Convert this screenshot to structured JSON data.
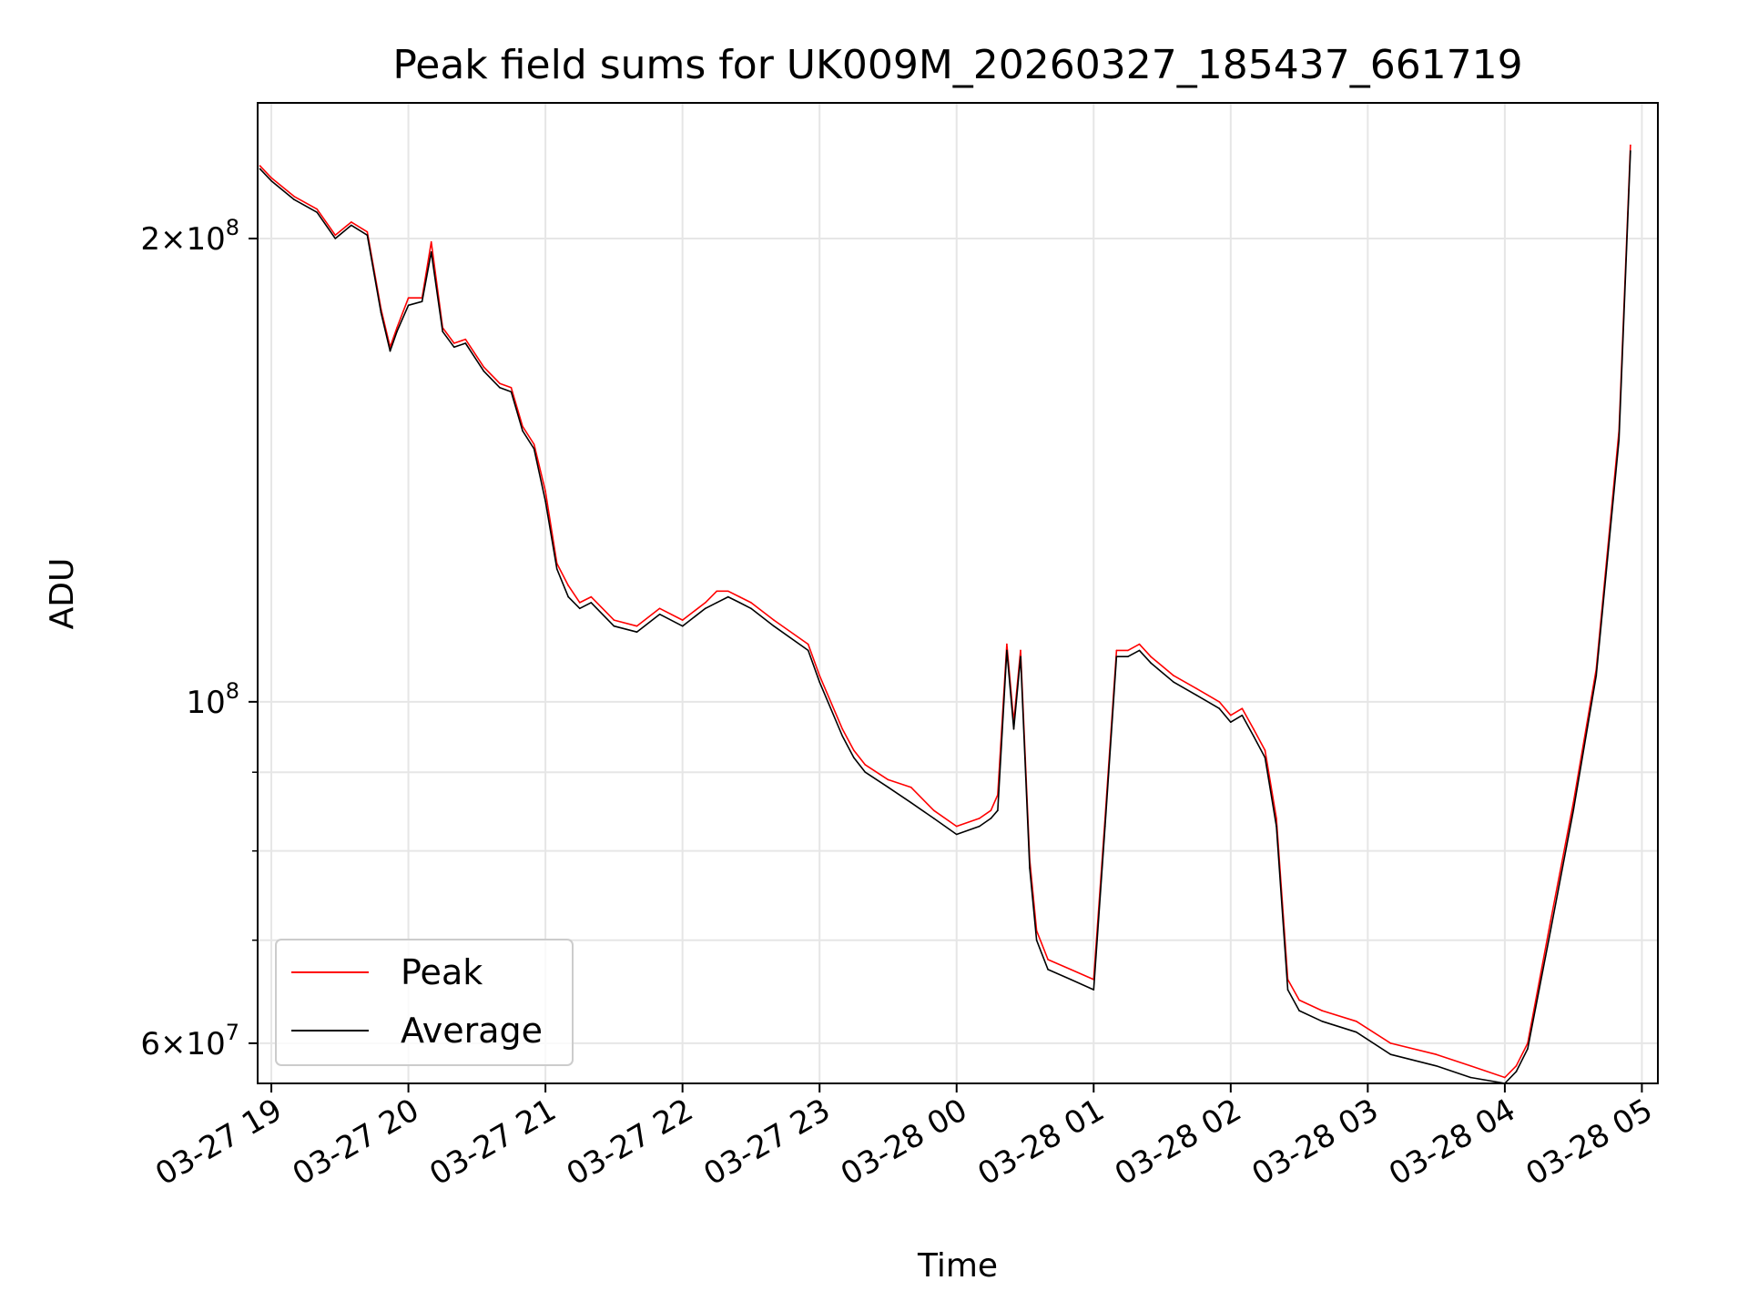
{
  "chart_data": {
    "type": "line",
    "title": "Peak field sums for UK009M_20260327_185437_661719",
    "xlabel": "Time",
    "ylabel": "ADU",
    "yscale": "log",
    "grid": true,
    "legend_position": "lower-left",
    "x_ticks": [
      "2026-03-27 19:00",
      "2026-03-27 20:00",
      "2026-03-27 21:00",
      "2026-03-27 22:00",
      "2026-03-27 23:00",
      "2026-03-28 00:00",
      "2026-03-28 01:00",
      "2026-03-28 02:00",
      "2026-03-28 03:00",
      "2026-03-28 04:00",
      "2026-03-28 05:00"
    ],
    "x_tick_labels": [
      "03-27 19",
      "03-27 20",
      "03-27 21",
      "03-27 22",
      "03-27 23",
      "03-28 00",
      "03-28 01",
      "03-28 02",
      "03-28 03",
      "03-28 04",
      "03-28 05"
    ],
    "xlim": [
      "2026-03-27 18:54",
      "2026-03-28 05:07"
    ],
    "ylim": [
      56500000,
      245000000
    ],
    "y_major_ticks": [
      60000000,
      100000000,
      200000000
    ],
    "y_major_labels": [
      {
        "mantissa": "6",
        "times": "×",
        "base": "10",
        "exp": "7"
      },
      {
        "mantissa": "",
        "times": "",
        "base": "10",
        "exp": "8"
      },
      {
        "mantissa": "2",
        "times": "×",
        "base": "10",
        "exp": "8"
      }
    ],
    "y_minor_ticks": [
      70000000,
      80000000,
      90000000
    ],
    "series": [
      {
        "name": "Peak",
        "color": "#ff0000",
        "x": [
          "2026-03-27 18:55",
          "2026-03-27 19:00",
          "2026-03-27 19:10",
          "2026-03-27 19:20",
          "2026-03-27 19:28",
          "2026-03-27 19:35",
          "2026-03-27 19:42",
          "2026-03-27 19:48",
          "2026-03-27 19:52",
          "2026-03-27 19:55",
          "2026-03-27 20:00",
          "2026-03-27 20:06",
          "2026-03-27 20:10",
          "2026-03-27 20:15",
          "2026-03-27 20:20",
          "2026-03-27 20:25",
          "2026-03-27 20:33",
          "2026-03-27 20:40",
          "2026-03-27 20:45",
          "2026-03-27 20:50",
          "2026-03-27 20:55",
          "2026-03-27 21:00",
          "2026-03-27 21:05",
          "2026-03-27 21:10",
          "2026-03-27 21:15",
          "2026-03-27 21:20",
          "2026-03-27 21:30",
          "2026-03-27 21:40",
          "2026-03-27 21:50",
          "2026-03-27 22:00",
          "2026-03-27 22:10",
          "2026-03-27 22:15",
          "2026-03-27 22:20",
          "2026-03-27 22:25",
          "2026-03-27 22:30",
          "2026-03-27 22:40",
          "2026-03-27 22:55",
          "2026-03-27 23:00",
          "2026-03-27 23:10",
          "2026-03-27 23:15",
          "2026-03-27 23:20",
          "2026-03-27 23:30",
          "2026-03-27 23:40",
          "2026-03-27 23:50",
          "2026-03-28 00:00",
          "2026-03-28 00:10",
          "2026-03-28 00:15",
          "2026-03-28 00:18",
          "2026-03-28 00:22",
          "2026-03-28 00:25",
          "2026-03-28 00:28",
          "2026-03-28 00:32",
          "2026-03-28 00:35",
          "2026-03-28 00:40",
          "2026-03-28 00:50",
          "2026-03-28 01:00",
          "2026-03-28 01:05",
          "2026-03-28 01:10",
          "2026-03-28 01:15",
          "2026-03-28 01:20",
          "2026-03-28 01:25",
          "2026-03-28 01:35",
          "2026-03-28 01:45",
          "2026-03-28 01:55",
          "2026-03-28 02:00",
          "2026-03-28 02:05",
          "2026-03-28 02:10",
          "2026-03-28 02:15",
          "2026-03-28 02:20",
          "2026-03-28 02:25",
          "2026-03-28 02:30",
          "2026-03-28 02:40",
          "2026-03-28 02:55",
          "2026-03-28 03:10",
          "2026-03-28 03:30",
          "2026-03-28 03:45",
          "2026-03-28 04:00",
          "2026-03-28 04:05",
          "2026-03-28 04:10",
          "2026-03-28 04:20",
          "2026-03-28 04:30",
          "2026-03-28 04:40",
          "2026-03-28 04:50",
          "2026-03-28 04:55"
        ],
        "values": [
          223000000,
          219000000,
          213000000,
          209000000,
          201000000,
          205000000,
          202000000,
          180000000,
          170000000,
          175000000,
          183000000,
          183000000,
          199000000,
          175000000,
          171000000,
          172000000,
          165000000,
          161000000,
          160000000,
          151000000,
          147000000,
          137000000,
          123000000,
          119000000,
          116000000,
          117000000,
          113000000,
          112000000,
          115000000,
          113000000,
          116000000,
          118000000,
          118000000,
          117000000,
          116000000,
          113000000,
          109000000,
          104000000,
          96000000,
          93000000,
          91000000,
          89000000,
          88000000,
          85000000,
          83000000,
          84000000,
          85000000,
          87000000,
          109000000,
          97000000,
          108000000,
          79000000,
          71000000,
          68000000,
          67000000,
          66000000,
          84000000,
          108000000,
          108000000,
          109000000,
          107000000,
          104000000,
          102000000,
          100000000,
          98000000,
          99000000,
          96000000,
          93000000,
          84000000,
          66000000,
          64000000,
          63000000,
          62000000,
          60000000,
          59000000,
          58000000,
          57000000,
          58000000,
          60000000,
          72000000,
          86000000,
          105000000,
          150000000,
          230000000
        ]
      },
      {
        "name": "Average",
        "color": "#000000",
        "x": [
          "2026-03-27 18:55",
          "2026-03-27 19:00",
          "2026-03-27 19:10",
          "2026-03-27 19:20",
          "2026-03-27 19:28",
          "2026-03-27 19:35",
          "2026-03-27 19:42",
          "2026-03-27 19:48",
          "2026-03-27 19:52",
          "2026-03-27 19:55",
          "2026-03-27 20:00",
          "2026-03-27 20:06",
          "2026-03-27 20:10",
          "2026-03-27 20:15",
          "2026-03-27 20:20",
          "2026-03-27 20:25",
          "2026-03-27 20:33",
          "2026-03-27 20:40",
          "2026-03-27 20:45",
          "2026-03-27 20:50",
          "2026-03-27 20:55",
          "2026-03-27 21:00",
          "2026-03-27 21:05",
          "2026-03-27 21:10",
          "2026-03-27 21:15",
          "2026-03-27 21:20",
          "2026-03-27 21:30",
          "2026-03-27 21:40",
          "2026-03-27 21:50",
          "2026-03-27 22:00",
          "2026-03-27 22:10",
          "2026-03-27 22:15",
          "2026-03-27 22:20",
          "2026-03-27 22:25",
          "2026-03-27 22:30",
          "2026-03-27 22:40",
          "2026-03-27 22:55",
          "2026-03-27 23:00",
          "2026-03-27 23:10",
          "2026-03-27 23:15",
          "2026-03-27 23:20",
          "2026-03-27 23:30",
          "2026-03-27 23:40",
          "2026-03-27 23:50",
          "2026-03-28 00:00",
          "2026-03-28 00:10",
          "2026-03-28 00:15",
          "2026-03-28 00:18",
          "2026-03-28 00:22",
          "2026-03-28 00:25",
          "2026-03-28 00:28",
          "2026-03-28 00:32",
          "2026-03-28 00:35",
          "2026-03-28 00:40",
          "2026-03-28 00:50",
          "2026-03-28 01:00",
          "2026-03-28 01:05",
          "2026-03-28 01:10",
          "2026-03-28 01:15",
          "2026-03-28 01:20",
          "2026-03-28 01:25",
          "2026-03-28 01:35",
          "2026-03-28 01:45",
          "2026-03-28 01:55",
          "2026-03-28 02:00",
          "2026-03-28 02:05",
          "2026-03-28 02:10",
          "2026-03-28 02:15",
          "2026-03-28 02:20",
          "2026-03-28 02:25",
          "2026-03-28 02:30",
          "2026-03-28 02:40",
          "2026-03-28 02:55",
          "2026-03-28 03:10",
          "2026-03-28 03:30",
          "2026-03-28 03:45",
          "2026-03-28 04:00",
          "2026-03-28 04:05",
          "2026-03-28 04:10",
          "2026-03-28 04:20",
          "2026-03-28 04:30",
          "2026-03-28 04:40",
          "2026-03-28 04:50",
          "2026-03-28 04:55"
        ],
        "values": [
          222000000,
          218000000,
          212000000,
          208000000,
          200000000,
          204000000,
          201000000,
          179000000,
          169000000,
          174000000,
          181000000,
          182000000,
          196000000,
          174000000,
          170000000,
          171000000,
          164000000,
          160000000,
          159000000,
          150000000,
          146000000,
          135000000,
          122000000,
          117000000,
          115000000,
          116000000,
          112000000,
          111000000,
          114000000,
          112000000,
          115000000,
          116000000,
          117000000,
          116000000,
          115000000,
          112000000,
          108000000,
          103000000,
          95000000,
          92000000,
          90000000,
          88000000,
          86000000,
          84000000,
          82000000,
          83000000,
          84000000,
          85000000,
          108000000,
          96000000,
          107000000,
          78000000,
          70000000,
          67000000,
          66000000,
          65000000,
          83000000,
          107000000,
          107000000,
          108000000,
          106000000,
          103000000,
          101000000,
          99000000,
          97000000,
          98000000,
          95000000,
          92000000,
          83000000,
          65000000,
          63000000,
          62000000,
          61000000,
          59000000,
          58000000,
          57000000,
          56500000,
          57500000,
          59500000,
          71000000,
          85000000,
          104000000,
          148000000,
          228000000
        ]
      }
    ]
  }
}
